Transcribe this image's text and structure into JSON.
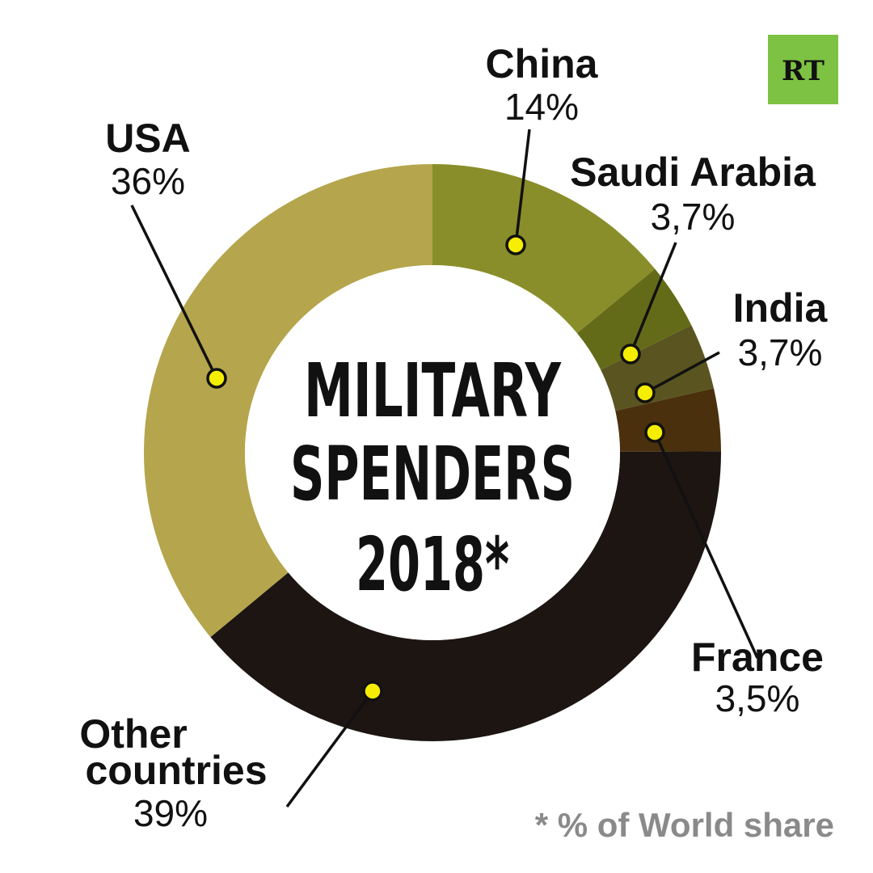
{
  "chart_data": {
    "type": "pie",
    "variant": "donut",
    "title_lines": [
      "MILITARY",
      "SPENDERS",
      "2018*"
    ],
    "footnote": "* % of World share",
    "slices": [
      {
        "name": "China",
        "label": "14%",
        "value": 14,
        "color": "#8a8e2a"
      },
      {
        "name": "Saudi Arabia",
        "label": "3,7%",
        "value": 3.7,
        "color": "#646b18"
      },
      {
        "name": "India",
        "label": "3,7%",
        "value": 3.7,
        "color": "#5a5420"
      },
      {
        "name": "France",
        "label": "3,5%",
        "value": 3.5,
        "color": "#4a300c"
      },
      {
        "name": "Other countries",
        "label": "39%",
        "value": 39,
        "color": "#1c1512"
      },
      {
        "name": "USA",
        "label": "36%",
        "value": 36,
        "color": "#b5a54c"
      }
    ]
  },
  "logo": {
    "text": "RT",
    "color": "#7dc242"
  },
  "marker_color": "#f5ee00"
}
